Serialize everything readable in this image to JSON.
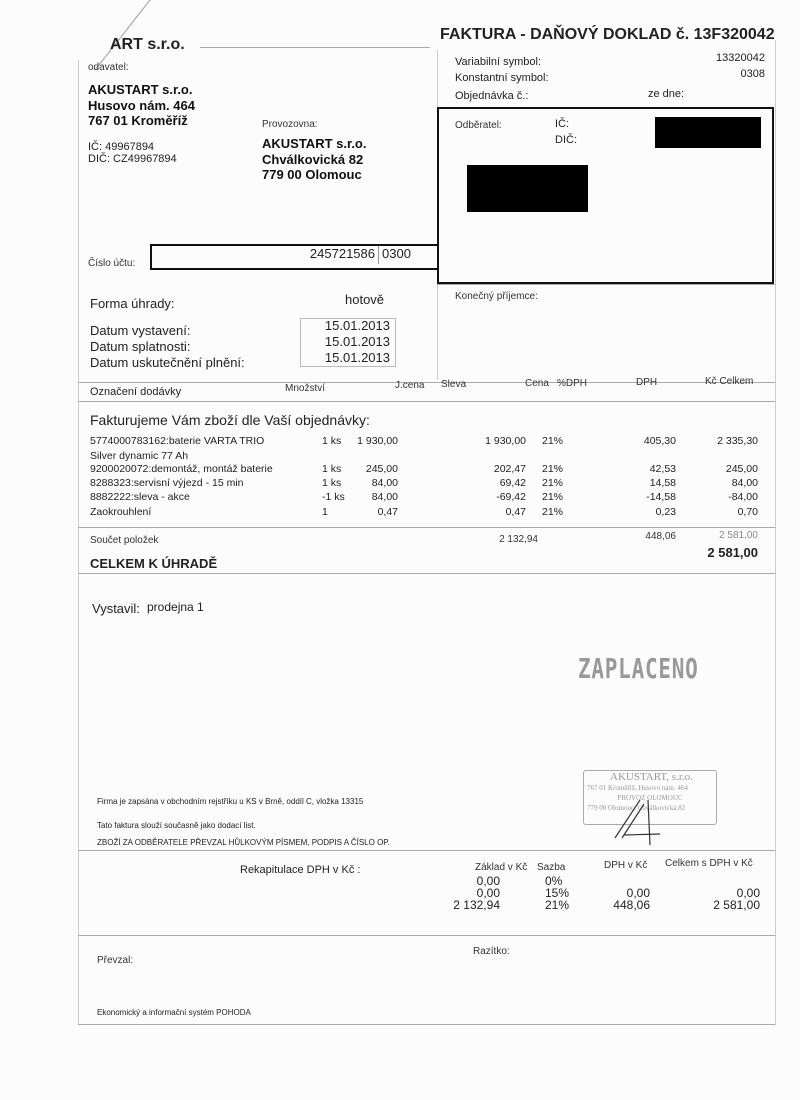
{
  "header": {
    "company_partial": "ART s.r.o.",
    "title": "FAKTURA - DAŇOVÝ DOKLAD č. 13F320042"
  },
  "symbols": {
    "variable_label": "Variabilní symbol:",
    "variable_value": "13320042",
    "constant_label": "Konstantní symbol:",
    "constant_value": "0308",
    "order_label": "Objednávka č.:",
    "order_date_label": "ze dne:"
  },
  "supplier": {
    "label": "odavatel:",
    "name": "AKUSTART s.r.o.",
    "street": "Husovo nám. 464",
    "city": "767 01 Kroměříž",
    "ic": "IČ: 49967894",
    "dic": "DIČ: CZ49967894"
  },
  "premises": {
    "label": "Provozovna:",
    "name": "AKUSTART s.r.o.",
    "street": "Chválkovická 82",
    "city": "779 00 Olomouc"
  },
  "customer": {
    "label": "Odběratel:",
    "ic_label": "IČ:",
    "dic_label": "DIČ:",
    "final_recipient_label": "Konečný příjemce:"
  },
  "account": {
    "label": "Číslo účtu:",
    "number": "245721586",
    "bank_code": "0300"
  },
  "payment": {
    "label": "Forma úhrady:",
    "value": "hotově"
  },
  "dates": [
    {
      "label": "Datum vystavení:",
      "value": "15.01.2013"
    },
    {
      "label": "Datum splatnosti:",
      "value": "15.01.2013"
    },
    {
      "label": "Datum uskutečnění plnění:",
      "value": "15.01.2013"
    }
  ],
  "items_table": {
    "headers": [
      "Označení dodávky",
      "Množství",
      "J.cena",
      "Sleva",
      "Cena",
      "%DPH",
      "DPH",
      "Kč Celkem"
    ],
    "intro": "Fakturujeme Vám zboží dle Vaší objednávky:",
    "rows": [
      {
        "desc": "5774000783162:baterie VARTA TRIO",
        "qty": "1 ks",
        "unit": "1 930,00",
        "price": "1 930,00",
        "vat_rate": "21%",
        "vat": "405,30",
        "total": "2 335,30"
      },
      {
        "desc": "Silver dynamic 77 Ah",
        "qty": "",
        "unit": "",
        "price": "",
        "vat_rate": "",
        "vat": "",
        "total": ""
      },
      {
        "desc": "9200020072:demontáž, montáž  baterie",
        "qty": "1 ks",
        "unit": "245,00",
        "price": "202,47",
        "vat_rate": "21%",
        "vat": "42,53",
        "total": "245,00"
      },
      {
        "desc": "8288323:servisní výjezd - 15 min",
        "qty": "1 ks",
        "unit": "84,00",
        "price": "69,42",
        "vat_rate": "21%",
        "vat": "14,58",
        "total": "84,00"
      },
      {
        "desc": "8882222:sleva - akce",
        "qty": "-1 ks",
        "unit": "84,00",
        "price": "-69,42",
        "vat_rate": "21%",
        "vat": "-14,58",
        "total": "-84,00"
      },
      {
        "desc": "Zaokrouhlení",
        "qty": "1",
        "unit": "0,47",
        "price": "0,47",
        "vat_rate": "21%",
        "vat": "0,23",
        "total": "0,70"
      }
    ],
    "sum_label": "Součet položek",
    "sum_price": "2 132,94",
    "sum_vat": "448,06",
    "sum_total": "2 581,00",
    "grand_label": "CELKEM K ÚHRADĚ",
    "grand_total": "2 581,00"
  },
  "issued": {
    "label": "Vystavil:",
    "value": "prodejna 1"
  },
  "paid_stamp": "ZAPLACENO",
  "company_stamp": {
    "title": "AKUSTART, s.r.o.",
    "line1": "767 01 Kroměříž, Husovo nám. 464",
    "line2": "PROVOZ OLOMOUC",
    "line3": "779 00 Olomouc, Chválkovická 82"
  },
  "notes": [
    "Firma je zapsána v obchodním rejstříku u KS v Brně, oddíl C, vložka 13315",
    "Tato faktura slouží současně jako dodací list.",
    "ZBOŽÍ ZA ODBĚRATELE PŘEVZAL HŮLKOVÝM PÍSMEM, PODPIS A ČÍSLO OP."
  ],
  "vat_recap": {
    "label": "Rekapitulace DPH v Kč :",
    "headers": [
      "Základ v Kč",
      "Sazba",
      "DPH v Kč",
      "Celkem s  DPH v Kč"
    ],
    "rows": [
      {
        "base": "0,00",
        "rate": "0%",
        "vat": "",
        "total": ""
      },
      {
        "base": "0,00",
        "rate": "15%",
        "vat": "0,00",
        "total": "0,00"
      },
      {
        "base": "2 132,94",
        "rate": "21%",
        "vat": "448,06",
        "total": "2 581,00"
      }
    ]
  },
  "received_label": "Převzal:",
  "stamp_label": "Razítko:",
  "software": "Ekonomický a informační systém POHODA"
}
